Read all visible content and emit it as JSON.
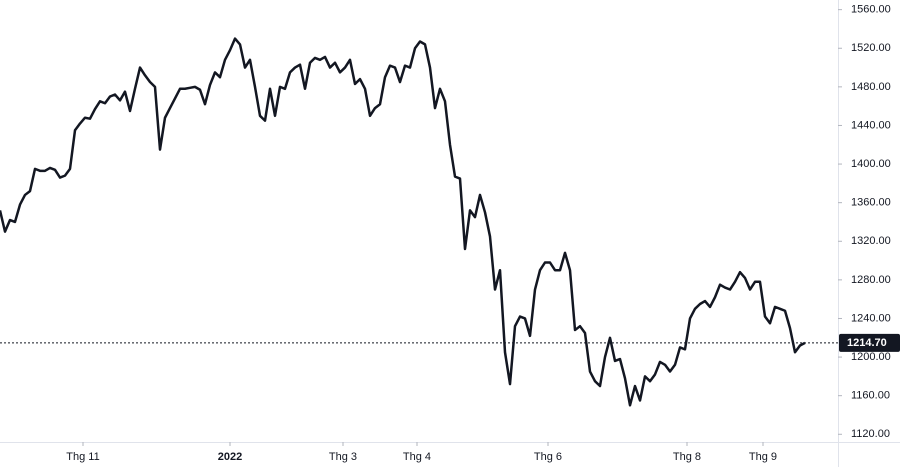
{
  "chart_data": {
    "type": "line",
    "values": [
      1352,
      1330,
      1342,
      1340,
      1358,
      1368,
      1372,
      1395,
      1393,
      1393,
      1396,
      1394,
      1386,
      1388,
      1395,
      1435,
      1442,
      1448,
      1447,
      1457,
      1465,
      1463,
      1470,
      1472,
      1466,
      1475,
      1455,
      1478,
      1500,
      1492,
      1485,
      1480,
      1415,
      1448,
      1458,
      1468,
      1478,
      1478,
      1479,
      1480,
      1477,
      1462,
      1482,
      1495,
      1490,
      1508,
      1518,
      1530,
      1524,
      1500,
      1508,
      1480,
      1450,
      1445,
      1478,
      1450,
      1480,
      1478,
      1495,
      1500,
      1503,
      1478,
      1505,
      1510,
      1508,
      1511,
      1500,
      1505,
      1495,
      1500,
      1508,
      1483,
      1488,
      1478,
      1450,
      1458,
      1462,
      1490,
      1502,
      1500,
      1485,
      1502,
      1500,
      1520,
      1527,
      1524,
      1500,
      1458,
      1478,
      1465,
      1420,
      1387,
      1385,
      1312,
      1352,
      1345,
      1368,
      1350,
      1325,
      1270,
      1290,
      1205,
      1172,
      1232,
      1242,
      1240,
      1222,
      1270,
      1290,
      1298,
      1298,
      1290,
      1290,
      1308,
      1290,
      1228,
      1232,
      1225,
      1185,
      1175,
      1170,
      1200,
      1220,
      1196,
      1198,
      1178,
      1150,
      1170,
      1155,
      1180,
      1175,
      1182,
      1195,
      1192,
      1185,
      1192,
      1210,
      1208,
      1240,
      1250,
      1255,
      1258,
      1252,
      1262,
      1275,
      1272,
      1270,
      1278,
      1288,
      1282,
      1270,
      1278,
      1278,
      1242,
      1235,
      1252,
      1250,
      1248,
      1230,
      1205,
      1212,
      1214.7
    ],
    "color": "#131722",
    "ylim": [
      1112,
      1570
    ],
    "yticks": [
      {
        "value": 1120,
        "label": "1120.00"
      },
      {
        "value": 1160,
        "label": "1160.00"
      },
      {
        "value": 1200,
        "label": "1200.00"
      },
      {
        "value": 1240,
        "label": "1240.00"
      },
      {
        "value": 1280,
        "label": "1280.00"
      },
      {
        "value": 1320,
        "label": "1320.00"
      },
      {
        "value": 1360,
        "label": "1360.00"
      },
      {
        "value": 1400,
        "label": "1400.00"
      },
      {
        "value": 1440,
        "label": "1440.00"
      },
      {
        "value": 1480,
        "label": "1480.00"
      },
      {
        "value": 1520,
        "label": "1520.00"
      },
      {
        "value": 1560,
        "label": "1560.00"
      }
    ],
    "xticks": [
      {
        "value": 16.6,
        "label": "Thg 11"
      },
      {
        "value": 46,
        "label": "2022"
      },
      {
        "value": 68.6,
        "label": "Thg 3"
      },
      {
        "value": 83.4,
        "label": "Thg 4"
      },
      {
        "value": 109.6,
        "label": "Thg 6"
      },
      {
        "value": 137.4,
        "label": "Thg 8"
      },
      {
        "value": 152.6,
        "label": "Thg 9"
      }
    ],
    "last_price": {
      "value": 1214.7,
      "label": "1214.70"
    }
  }
}
